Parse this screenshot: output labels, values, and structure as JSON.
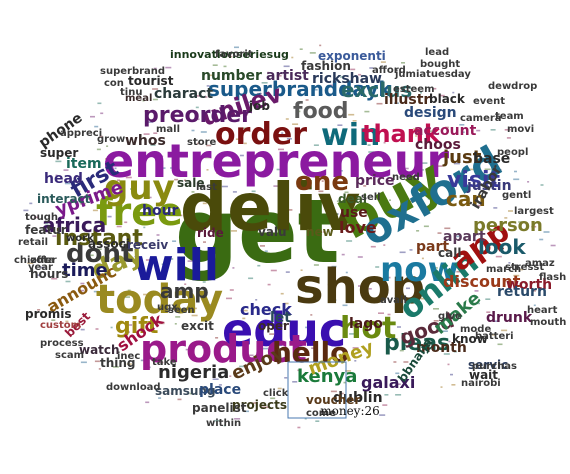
{
  "tooltip": "money:26",
  "words": [
    {
      "text": "get",
      "color": "#3a6b12"
    },
    {
      "text": "deliv",
      "color": "#4a4a0a"
    },
    {
      "text": "entrepreneur",
      "color": "#8b1aa0"
    },
    {
      "text": "educ",
      "color": "#3a0fb0"
    },
    {
      "text": "shop",
      "color": "#4a3a10"
    },
    {
      "text": "buy",
      "color": "#4a7a10"
    },
    {
      "text": "oxford",
      "color": "#1f6f8f"
    },
    {
      "text": "today",
      "color": "#9a8a20"
    },
    {
      "text": "will",
      "color": "#1a1a9a"
    },
    {
      "text": "product",
      "color": "#9a1a8a"
    },
    {
      "text": "free",
      "color": "#7a9a10"
    },
    {
      "text": "now",
      "color": "#1a7aa0"
    },
    {
      "text": "guy",
      "color": "#8a8a10"
    },
    {
      "text": "order",
      "color": "#7a1010"
    },
    {
      "text": "win",
      "color": "#0f6a7a"
    },
    {
      "text": "thank",
      "color": "#c01050"
    },
    {
      "text": "hot",
      "color": "#6a8a10"
    },
    {
      "text": "onlin",
      "color": "#1a7a6a"
    },
    {
      "text": "app",
      "color": "#a01010"
    },
    {
      "text": "one",
      "color": "#7a3a10"
    },
    {
      "text": "hello",
      "color": "#5a2a10"
    },
    {
      "text": "day",
      "color": "#9a9a30"
    },
    {
      "text": "dont",
      "color": "#3a3a3a"
    },
    {
      "text": "instant",
      "color": "#5a5a10"
    },
    {
      "text": "first",
      "color": "#2a2a7a"
    },
    {
      "text": "food",
      "color": "#5a5a5a"
    },
    {
      "text": "superbranddayk",
      "color": "#1a5a8a"
    },
    {
      "text": "unilev",
      "color": "#6a1a6a"
    },
    {
      "text": "preorder",
      "color": "#5a1a6a"
    },
    {
      "text": "gift",
      "color": "#a08a10"
    },
    {
      "text": "africa",
      "color": "#3a1a5a"
    },
    {
      "text": "visit",
      "color": "#3a3a9a"
    },
    {
      "text": "can",
      "color": "#7a5a10"
    },
    {
      "text": "just",
      "color": "#5a3a10"
    },
    {
      "text": "pleas",
      "color": "#1a5a4a"
    },
    {
      "text": "good",
      "color": "#5a2a3a"
    },
    {
      "text": "kenya",
      "color": "#1a7a3a"
    },
    {
      "text": "exclus",
      "color": "#2a6a6a"
    },
    {
      "text": "amp",
      "color": "#3a3a3a"
    },
    {
      "text": "nigeria",
      "color": "#2a2a2a"
    },
    {
      "text": "money",
      "color": "#b0a020"
    },
    {
      "text": "enjoy",
      "color": "#5a3a1a"
    },
    {
      "text": "look",
      "color": "#1a5a6a"
    },
    {
      "text": "make",
      "color": "#2a7a4a"
    },
    {
      "text": "love",
      "color": "#6a1a1a"
    },
    {
      "text": "discount",
      "color": "#9a3a1a"
    },
    {
      "text": "person",
      "color": "#7a7a2a"
    },
    {
      "text": "time",
      "color": "#1a1a5a"
    },
    {
      "text": "yprime",
      "color": "#7a1a8a"
    },
    {
      "text": "design",
      "color": "#2a4a7a"
    },
    {
      "text": "account",
      "color": "#9a1a5a"
    },
    {
      "text": "choos",
      "color": "#5a1a3a"
    },
    {
      "text": "month",
      "color": "#4a2a1a"
    },
    {
      "text": "fashion",
      "color": "#3a3a3a"
    },
    {
      "text": "artist",
      "color": "#4a2a5a"
    },
    {
      "text": "rickshaw",
      "color": "#2a3a5a"
    },
    {
      "text": "number",
      "color": "#2a4a2a"
    },
    {
      "text": "innovationseriesug",
      "color": "#1a3a1a"
    },
    {
      "text": "exponenti",
      "color": "#3a5a9a"
    },
    {
      "text": "illustr",
      "color": "#4a2a1a"
    },
    {
      "text": "black",
      "color": "#2a2a2a"
    },
    {
      "text": "lago",
      "color": "#4a1a1a"
    },
    {
      "text": "galaxi",
      "color": "#3a1a5a"
    },
    {
      "text": "dublin",
      "color": "#2a2a2a"
    },
    {
      "text": "voucher",
      "color": "#5a3a1a"
    },
    {
      "text": "samsung",
      "color": "#3a4a5a"
    },
    {
      "text": "place",
      "color": "#2a4a7a"
    },
    {
      "text": "projects",
      "color": "#3a3a1a"
    },
    {
      "text": "panelist",
      "color": "#3a3a3a"
    },
    {
      "text": "check",
      "color": "#2a2a8a"
    },
    {
      "text": "shock",
      "color": "#a01040"
    },
    {
      "text": "announc",
      "color": "#8a5a10"
    },
    {
      "text": "item",
      "color": "#1a6a5a"
    },
    {
      "text": "head",
      "color": "#3a2a7a"
    },
    {
      "text": "phone",
      "color": "#2a2a2a"
    },
    {
      "text": "whos",
      "color": "#3a2a2a"
    },
    {
      "text": "charact",
      "color": "#2a3a3a"
    },
    {
      "text": "tourist",
      "color": "#2a2a2a"
    },
    {
      "text": "hour",
      "color": "#2a2a7a"
    },
    {
      "text": "sale",
      "color": "#2a3a2a"
    },
    {
      "text": "ride",
      "color": "#5a1a3a"
    },
    {
      "text": "valu",
      "color": "#3a3a3a"
    },
    {
      "text": "new",
      "color": "#5a5a1a"
    },
    {
      "text": "use",
      "color": "#5a1a1a"
    },
    {
      "text": "deal",
      "color": "#3a5a2a"
    },
    {
      "text": "price",
      "color": "#5a2a5a"
    },
    {
      "text": "base",
      "color": "#2a2a2a"
    },
    {
      "text": "justin",
      "color": "#3a3a7a"
    },
    {
      "text": "irabor",
      "color": "#3a3a3a"
    },
    {
      "text": "worth",
      "color": "#8a1a2a"
    },
    {
      "text": "return",
      "color": "#2a4a6a"
    },
    {
      "text": "drunk",
      "color": "#5a1a4a"
    },
    {
      "text": "know",
      "color": "#2a2a2a"
    },
    {
      "text": "part",
      "color": "#7a3a1a"
    },
    {
      "text": "call",
      "color": "#3a3a3a"
    },
    {
      "text": "bbnaija",
      "color": "#1a4a3a"
    },
    {
      "text": "apart",
      "color": "#5a3a5a"
    },
    {
      "text": "excit",
      "color": "#3a3a3a"
    },
    {
      "text": "associ",
      "color": "#2a2a2a"
    },
    {
      "text": "receiv",
      "color": "#3a3a6a"
    },
    {
      "text": "let",
      "color": "#2a4a5a"
    },
    {
      "text": "oper",
      "color": "#3a2a2a"
    },
    {
      "text": "job",
      "color": "#2a2a2a"
    },
    {
      "text": "mall",
      "color": "#3a3a3a"
    },
    {
      "text": "store",
      "color": "#3a3a3a"
    },
    {
      "text": "meal",
      "color": "#3a2a2a"
    },
    {
      "text": "super",
      "color": "#2a2a2a"
    },
    {
      "text": "interact",
      "color": "#2a5a5a"
    },
    {
      "text": "featur",
      "color": "#3a3a3a"
    },
    {
      "text": "promis",
      "color": "#2a2a2a"
    },
    {
      "text": "hours",
      "color": "#3a3a3a"
    },
    {
      "text": "work",
      "color": "#2a2a2a"
    },
    {
      "text": "watch",
      "color": "#3a2a3a"
    },
    {
      "text": "thing",
      "color": "#3a3a3a"
    },
    {
      "text": "best",
      "color": "#9a1a3a"
    },
    {
      "text": "custom",
      "color": "#a04040"
    },
    {
      "text": "take",
      "color": "#3a3a3a"
    },
    {
      "text": "last",
      "color": "#3a3a3a"
    },
    {
      "text": "servic",
      "color": "#2a3a5a"
    },
    {
      "text": "wait",
      "color": "#2a2a2a"
    },
    {
      "text": "stresst",
      "color": "#3a3a3a"
    },
    {
      "text": "march",
      "color": "#3a3a3a"
    },
    {
      "text": "give",
      "color": "#3a3a3a"
    },
    {
      "text": "avail",
      "color": "#3a3a3a"
    },
    {
      "text": "sell",
      "color": "#3a3a3a"
    },
    {
      "text": "need",
      "color": "#3a3a3a"
    },
    {
      "text": "jumiatuesday",
      "color": "#3a3a3a"
    },
    {
      "text": "esteem",
      "color": "#3a3a3a"
    },
    {
      "text": "camera",
      "color": "#3a3a3a"
    },
    {
      "text": "event",
      "color": "#3a3a3a"
    },
    {
      "text": "favorit",
      "color": "#3a3a3a"
    },
    {
      "text": "superbrand",
      "color": "#3a3a3a"
    },
    {
      "text": "nairobi",
      "color": "#3a3a3a"
    },
    {
      "text": "purchas",
      "color": "#3a3a3a"
    },
    {
      "text": "download",
      "color": "#3a3a3a"
    },
    {
      "text": "process",
      "color": "#3a3a3a"
    },
    {
      "text": "retail",
      "color": "#3a3a3a"
    },
    {
      "text": "mode",
      "color": "#3a3a3a"
    },
    {
      "text": "batteri",
      "color": "#3a3a3a"
    },
    {
      "text": "come",
      "color": "#3a3a3a"
    },
    {
      "text": "click",
      "color": "#3a3a3a"
    },
    {
      "text": "inec",
      "color": "#3a3a3a"
    },
    {
      "text": "within",
      "color": "#3a3a3a"
    },
    {
      "text": "team",
      "color": "#3a3a3a"
    },
    {
      "text": "movi",
      "color": "#3a3a3a"
    },
    {
      "text": "gentl",
      "color": "#3a3a3a"
    },
    {
      "text": "largest",
      "color": "#3a3a3a"
    },
    {
      "text": "peopl",
      "color": "#3a3a3a"
    },
    {
      "text": "grow",
      "color": "#3a3a3a"
    },
    {
      "text": "offer",
      "color": "#3a3a3a"
    },
    {
      "text": "year",
      "color": "#3a3a3a"
    },
    {
      "text": "scam",
      "color": "#3a3a3a"
    },
    {
      "text": "tough",
      "color": "#3a3a3a"
    },
    {
      "text": "chizota",
      "color": "#3a3a3a"
    },
    {
      "text": "amaz",
      "color": "#3a3a3a"
    },
    {
      "text": "flash",
      "color": "#3a3a3a"
    },
    {
      "text": "heart",
      "color": "#3a3a3a"
    },
    {
      "text": "mouth",
      "color": "#3a3a3a"
    },
    {
      "text": "seen",
      "color": "#3a3a3a"
    },
    {
      "text": "tinu",
      "color": "#3a3a3a"
    },
    {
      "text": "con",
      "color": "#3a3a3a"
    },
    {
      "text": "appreci",
      "color": "#3a3a3a"
    },
    {
      "text": "afford",
      "color": "#3a3a3a"
    },
    {
      "text": "ugx",
      "color": "#3a3a3a"
    },
    {
      "text": "dewdrop",
      "color": "#3a3a3a"
    },
    {
      "text": "bought",
      "color": "#3a3a3a"
    },
    {
      "text": "lead",
      "color": "#3a3a3a"
    }
  ]
}
